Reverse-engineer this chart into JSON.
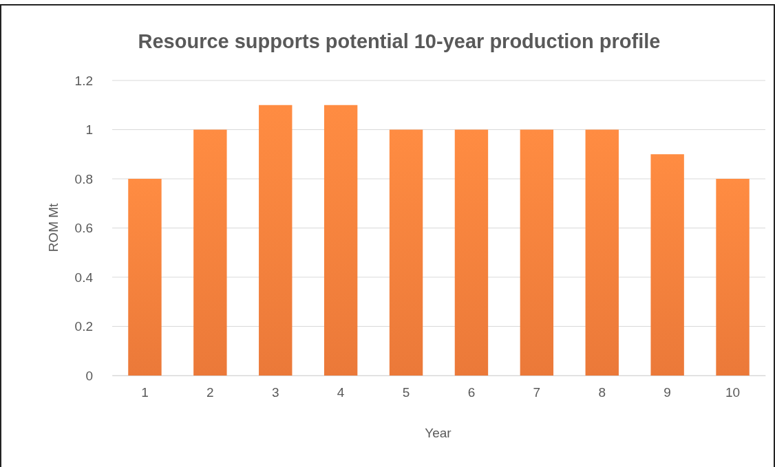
{
  "chart_data": {
    "type": "bar",
    "title": "Resource supports potential 10-year production profile",
    "xlabel": "Year",
    "ylabel": "ROM Mt",
    "categories": [
      "1",
      "2",
      "3",
      "4",
      "5",
      "6",
      "7",
      "8",
      "9",
      "10"
    ],
    "values": [
      0.8,
      1,
      1.1,
      1.1,
      1,
      1,
      1,
      1,
      0.9,
      0.8
    ],
    "color": "#f8803c",
    "ylim": [
      0,
      1.2
    ],
    "yticks": [
      0,
      0.2,
      0.4,
      0.6,
      0.8,
      1,
      1.2
    ],
    "grid": "y"
  }
}
